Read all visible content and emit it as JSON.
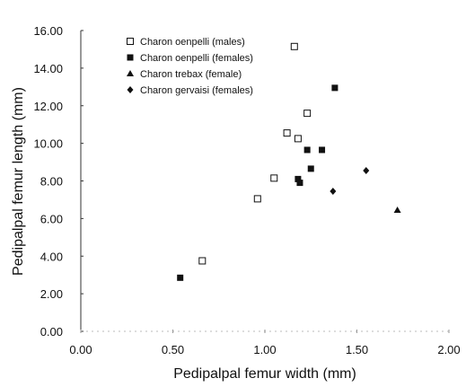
{
  "chart_data": {
    "type": "scatter",
    "title": "",
    "xlabel": "Pedipalpal femur width (mm)",
    "ylabel": "Pedipalpal femur length (mm)",
    "xlim": [
      0,
      2
    ],
    "ylim": [
      0,
      16
    ],
    "x_ticks": [
      "0.00",
      "0.50",
      "1.00",
      "1.50",
      "2.00"
    ],
    "y_ticks": [
      "0.00",
      "2.00",
      "4.00",
      "6.00",
      "8.00",
      "10.00",
      "12.00",
      "14.00",
      "16.00"
    ],
    "grid": false,
    "legend_position": "top-left",
    "series": [
      {
        "name": "Charon oenpelli (males)",
        "marker": "open-square",
        "color": "#111111",
        "points": [
          [
            0.66,
            3.75
          ],
          [
            0.96,
            7.05
          ],
          [
            1.05,
            8.15
          ],
          [
            1.12,
            10.55
          ],
          [
            1.16,
            15.15
          ],
          [
            1.18,
            10.25
          ],
          [
            1.23,
            11.6
          ]
        ]
      },
      {
        "name": "Charon oenpelli (females)",
        "marker": "filled-square",
        "color": "#111111",
        "points": [
          [
            0.54,
            2.85
          ],
          [
            1.18,
            8.1
          ],
          [
            1.19,
            7.9
          ],
          [
            1.23,
            9.65
          ],
          [
            1.25,
            8.65
          ],
          [
            1.31,
            9.65
          ],
          [
            1.38,
            12.95
          ]
        ]
      },
      {
        "name": "Charon trebax (female)",
        "marker": "filled-triangle",
        "color": "#111111",
        "points": [
          [
            1.72,
            6.45
          ]
        ]
      },
      {
        "name": "Charon gervaisi (females)",
        "marker": "filled-diamond",
        "color": "#111111",
        "points": [
          [
            1.37,
            7.45
          ],
          [
            1.55,
            8.55
          ]
        ]
      }
    ]
  }
}
